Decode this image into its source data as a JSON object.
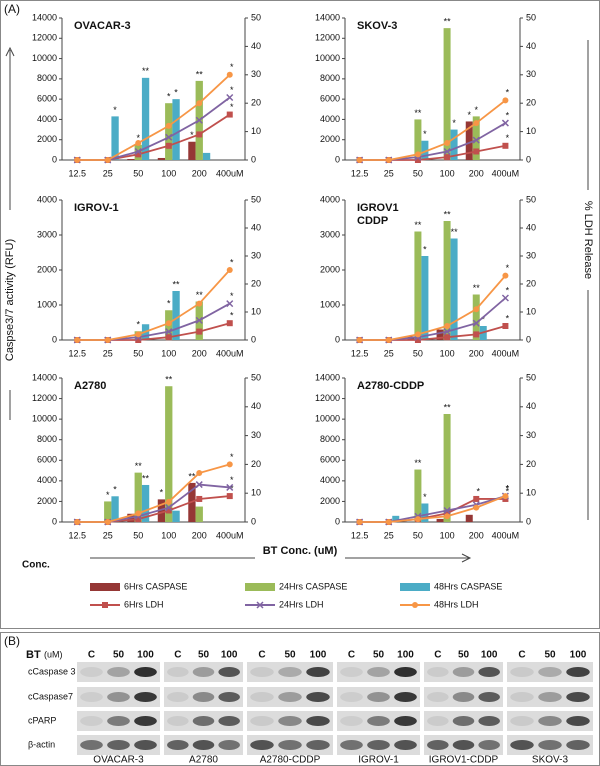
{
  "chart_data": [
    {
      "type": "combo",
      "title": "OVACAR-3",
      "categories": [
        "12.5",
        "25",
        "50",
        "100",
        "200",
        "400uM"
      ],
      "ylim": [
        0,
        14000
      ],
      "yticks": [
        0,
        2000,
        4000,
        6000,
        8000,
        10000,
        12000,
        14000
      ],
      "y2lim": [
        0,
        50
      ],
      "y2ticks": [
        0,
        10,
        20,
        30,
        40,
        50
      ],
      "series": [
        {
          "name": "6Hrs CASPASE",
          "color": "#953735",
          "mark": "bar",
          "values": [
            0,
            50,
            100,
            200,
            1800,
            null
          ],
          "annotations": [
            null,
            null,
            null,
            null,
            "*",
            null
          ]
        },
        {
          "name": "24Hrs CASPASE",
          "color": "#9bbb59",
          "mark": "bar",
          "values": [
            0,
            0,
            1500,
            5600,
            7800,
            null
          ],
          "annotations": [
            null,
            null,
            "*",
            "*",
            "**",
            null
          ]
        },
        {
          "name": "48Hrs CASPASE",
          "color": "#4bacc6",
          "mark": "bar",
          "values": [
            0,
            4300,
            8100,
            6000,
            700,
            null
          ],
          "annotations": [
            null,
            "*",
            "**",
            "*",
            null,
            null
          ]
        },
        {
          "name": "6Hrs LDH",
          "color": "#c0504d",
          "mark": "line",
          "marker": "square",
          "axis": "y2",
          "values": [
            0,
            0,
            2,
            5,
            9,
            16
          ],
          "annotations": [
            null,
            null,
            null,
            null,
            null,
            "*"
          ]
        },
        {
          "name": "24Hrs LDH",
          "color": "#8064a2",
          "mark": "line",
          "marker": "x",
          "axis": "y2",
          "values": [
            0,
            0,
            3,
            8,
            14,
            22
          ],
          "annotations": [
            null,
            null,
            null,
            null,
            null,
            "*"
          ]
        },
        {
          "name": "48Hrs LDH",
          "color": "#f79646",
          "mark": "line",
          "marker": "circle",
          "axis": "y2",
          "values": [
            0,
            0,
            6,
            12,
            20,
            30
          ],
          "annotations": [
            null,
            null,
            null,
            null,
            null,
            "*"
          ]
        }
      ]
    },
    {
      "type": "combo",
      "title": "SKOV-3",
      "categories": [
        "12.5",
        "25",
        "50",
        "100",
        "200",
        "400uM"
      ],
      "ylim": [
        0,
        14000
      ],
      "yticks": [
        0,
        2000,
        4000,
        6000,
        8000,
        10000,
        12000,
        14000
      ],
      "y2lim": [
        0,
        50
      ],
      "y2ticks": [
        0,
        10,
        20,
        30,
        40,
        50
      ],
      "series": [
        {
          "name": "6Hrs CASPASE",
          "color": "#953735",
          "mark": "bar",
          "values": [
            0,
            0,
            0,
            0,
            3800,
            null
          ],
          "annotations": [
            null,
            null,
            null,
            null,
            "*",
            null
          ]
        },
        {
          "name": "24Hrs CASPASE",
          "color": "#9bbb59",
          "mark": "bar",
          "values": [
            0,
            0,
            4000,
            13000,
            4300,
            null
          ],
          "annotations": [
            null,
            null,
            "**",
            "**",
            "*",
            null
          ]
        },
        {
          "name": "48Hrs CASPASE",
          "color": "#4bacc6",
          "mark": "bar",
          "values": [
            0,
            0,
            1900,
            3000,
            0,
            null
          ],
          "annotations": [
            null,
            null,
            "*",
            "*",
            null,
            null
          ]
        },
        {
          "name": "6Hrs LDH",
          "color": "#c0504d",
          "mark": "line",
          "marker": "square",
          "axis": "y2",
          "values": [
            0,
            0,
            0,
            1,
            3,
            5
          ],
          "annotations": [
            null,
            null,
            null,
            null,
            null,
            "*"
          ]
        },
        {
          "name": "24Hrs LDH",
          "color": "#8064a2",
          "mark": "line",
          "marker": "x",
          "axis": "y2",
          "values": [
            0,
            0,
            1,
            3,
            7,
            13
          ],
          "annotations": [
            null,
            null,
            null,
            null,
            null,
            "*"
          ]
        },
        {
          "name": "48Hrs LDH",
          "color": "#f79646",
          "mark": "line",
          "marker": "circle",
          "axis": "y2",
          "values": [
            0,
            0,
            2,
            6,
            13,
            21
          ],
          "annotations": [
            null,
            null,
            null,
            null,
            null,
            "*"
          ]
        }
      ]
    },
    {
      "type": "combo",
      "title": "IGROV-1",
      "categories": [
        "12.5",
        "25",
        "50",
        "100",
        "200",
        "400uM"
      ],
      "ylim": [
        0,
        4000
      ],
      "yticks": [
        0,
        1000,
        2000,
        3000,
        4000
      ],
      "y2lim": [
        0,
        50
      ],
      "y2ticks": [
        0,
        10,
        20,
        30,
        40,
        50
      ],
      "series": [
        {
          "name": "6Hrs CASPASE",
          "color": "#953735",
          "mark": "bar",
          "values": [
            0,
            0,
            0,
            0,
            0,
            null
          ],
          "annotations": [
            null,
            null,
            null,
            null,
            null,
            null
          ]
        },
        {
          "name": "24Hrs CASPASE",
          "color": "#9bbb59",
          "mark": "bar",
          "values": [
            0,
            0,
            250,
            850,
            1100,
            null
          ],
          "annotations": [
            null,
            null,
            "*",
            "*",
            "**",
            null
          ]
        },
        {
          "name": "48Hrs CASPASE",
          "color": "#4bacc6",
          "mark": "bar",
          "values": [
            0,
            0,
            450,
            1400,
            0,
            null
          ],
          "annotations": [
            null,
            null,
            null,
            "**",
            null,
            null
          ]
        },
        {
          "name": "6Hrs LDH",
          "color": "#c0504d",
          "mark": "line",
          "marker": "square",
          "axis": "y2",
          "values": [
            0,
            0,
            0,
            1,
            3,
            6
          ],
          "annotations": [
            null,
            null,
            null,
            null,
            null,
            "*"
          ]
        },
        {
          "name": "24Hrs LDH",
          "color": "#8064a2",
          "mark": "line",
          "marker": "x",
          "axis": "y2",
          "values": [
            0,
            0,
            1,
            3,
            7,
            13
          ],
          "annotations": [
            null,
            null,
            null,
            null,
            null,
            "*"
          ]
        },
        {
          "name": "48Hrs LDH",
          "color": "#f79646",
          "mark": "line",
          "marker": "circle",
          "axis": "y2",
          "values": [
            0,
            0,
            2,
            6,
            13,
            25
          ],
          "annotations": [
            null,
            null,
            null,
            null,
            null,
            "*"
          ]
        }
      ]
    },
    {
      "type": "combo",
      "title": [
        "IGROV1",
        "CDDP"
      ],
      "categories": [
        "12.5",
        "25",
        "50",
        "100",
        "200",
        "400uM"
      ],
      "ylim": [
        0,
        4000
      ],
      "yticks": [
        0,
        1000,
        2000,
        3000,
        4000
      ],
      "y2lim": [
        0,
        50
      ],
      "y2ticks": [
        0,
        10,
        20,
        30,
        40,
        50
      ],
      "series": [
        {
          "name": "6Hrs CASPASE",
          "color": "#953735",
          "mark": "bar",
          "values": [
            0,
            0,
            100,
            300,
            0,
            null
          ],
          "annotations": [
            null,
            null,
            null,
            null,
            null,
            null
          ]
        },
        {
          "name": "24Hrs CASPASE",
          "color": "#9bbb59",
          "mark": "bar",
          "values": [
            0,
            0,
            3100,
            3400,
            1300,
            null
          ],
          "annotations": [
            null,
            null,
            "**",
            "**",
            "**",
            null
          ]
        },
        {
          "name": "48Hrs CASPASE",
          "color": "#4bacc6",
          "mark": "bar",
          "values": [
            0,
            0,
            2400,
            2900,
            400,
            null
          ],
          "annotations": [
            null,
            null,
            "*",
            "**",
            "*",
            null
          ]
        },
        {
          "name": "6Hrs LDH",
          "color": "#c0504d",
          "mark": "line",
          "marker": "square",
          "axis": "y2",
          "values": [
            0,
            0,
            0,
            1,
            2,
            5
          ],
          "annotations": [
            null,
            null,
            null,
            null,
            null,
            "*"
          ]
        },
        {
          "name": "24Hrs LDH",
          "color": "#8064a2",
          "mark": "line",
          "marker": "x",
          "axis": "y2",
          "values": [
            0,
            0,
            1,
            3,
            6,
            15
          ],
          "annotations": [
            null,
            null,
            null,
            null,
            null,
            "*"
          ]
        },
        {
          "name": "48Hrs LDH",
          "color": "#f79646",
          "mark": "line",
          "marker": "circle",
          "axis": "y2",
          "values": [
            0,
            0,
            2,
            5,
            11,
            23
          ],
          "annotations": [
            null,
            null,
            null,
            null,
            null,
            "*"
          ]
        }
      ]
    },
    {
      "type": "combo",
      "title": "A2780",
      "categories": [
        "12.5",
        "25",
        "50",
        "100",
        "200",
        "400uM"
      ],
      "ylim": [
        0,
        14000
      ],
      "yticks": [
        0,
        2000,
        4000,
        6000,
        8000,
        10000,
        12000,
        14000
      ],
      "y2lim": [
        0,
        50
      ],
      "y2ticks": [
        0,
        10,
        20,
        30,
        40,
        50
      ],
      "series": [
        {
          "name": "6Hrs CASPASE",
          "color": "#953735",
          "mark": "bar",
          "values": [
            0,
            0,
            800,
            2200,
            3800,
            null
          ],
          "annotations": [
            null,
            null,
            null,
            "*",
            "**",
            null
          ]
        },
        {
          "name": "24Hrs CASPASE",
          "color": "#9bbb59",
          "mark": "bar",
          "values": [
            0,
            2000,
            4800,
            13200,
            1500,
            null
          ],
          "annotations": [
            null,
            "*",
            "**",
            "**",
            "*",
            null
          ]
        },
        {
          "name": "48Hrs CASPASE",
          "color": "#4bacc6",
          "mark": "bar",
          "values": [
            0,
            2500,
            3600,
            1100,
            0,
            null
          ],
          "annotations": [
            null,
            "*",
            "**",
            null,
            null,
            null
          ]
        },
        {
          "name": "6Hrs LDH",
          "color": "#c0504d",
          "mark": "line",
          "marker": "square",
          "axis": "y2",
          "values": [
            0,
            0,
            1,
            4,
            8,
            9
          ],
          "annotations": [
            null,
            null,
            null,
            null,
            null,
            "*"
          ]
        },
        {
          "name": "24Hrs LDH",
          "color": "#8064a2",
          "mark": "line",
          "marker": "x",
          "axis": "y2",
          "values": [
            0,
            0,
            2,
            5,
            13,
            12
          ],
          "annotations": [
            null,
            null,
            null,
            null,
            null,
            "*"
          ]
        },
        {
          "name": "48Hrs LDH",
          "color": "#f79646",
          "mark": "line",
          "marker": "circle",
          "axis": "y2",
          "values": [
            0,
            0,
            3,
            7,
            17,
            20
          ],
          "annotations": [
            null,
            null,
            null,
            null,
            null,
            "*"
          ]
        }
      ]
    },
    {
      "type": "combo",
      "title": "A2780-CDDP",
      "categories": [
        "12.5",
        "25",
        "50",
        "100",
        "200",
        "400uM"
      ],
      "ylim": [
        0,
        14000
      ],
      "yticks": [
        0,
        2000,
        4000,
        6000,
        8000,
        10000,
        12000,
        14000
      ],
      "y2lim": [
        0,
        50
      ],
      "y2ticks": [
        0,
        10,
        20,
        30,
        40,
        50
      ],
      "series": [
        {
          "name": "6Hrs CASPASE",
          "color": "#953735",
          "mark": "bar",
          "values": [
            0,
            0,
            0,
            300,
            700,
            null
          ],
          "annotations": [
            null,
            null,
            null,
            null,
            null,
            null
          ]
        },
        {
          "name": "24Hrs CASPASE",
          "color": "#9bbb59",
          "mark": "bar",
          "values": [
            0,
            0,
            5100,
            10500,
            0,
            null
          ],
          "annotations": [
            null,
            null,
            "**",
            "**",
            null,
            null
          ]
        },
        {
          "name": "48Hrs CASPASE",
          "color": "#4bacc6",
          "mark": "bar",
          "values": [
            0,
            600,
            1800,
            0,
            0,
            null
          ],
          "annotations": [
            null,
            null,
            "*",
            null,
            null,
            null
          ]
        },
        {
          "name": "6Hrs LDH",
          "color": "#c0504d",
          "mark": "line",
          "marker": "square",
          "axis": "y2",
          "values": [
            0,
            0,
            1,
            3,
            8,
            8
          ],
          "annotations": [
            null,
            null,
            null,
            null,
            "*",
            "*"
          ]
        },
        {
          "name": "24Hrs LDH",
          "color": "#8064a2",
          "mark": "line",
          "marker": "x",
          "axis": "y2",
          "values": [
            0,
            0,
            2,
            4,
            6,
            9
          ],
          "annotations": [
            null,
            null,
            null,
            null,
            null,
            "*"
          ]
        },
        {
          "name": "48Hrs LDH",
          "color": "#f79646",
          "mark": "line",
          "marker": "circle",
          "axis": "y2",
          "values": [
            0,
            0,
            1,
            2,
            5,
            9
          ],
          "annotations": [
            null,
            null,
            null,
            null,
            null,
            "*"
          ]
        }
      ]
    }
  ],
  "figure": {
    "panel_a": "(A)",
    "ylabel": "Caspse3/7 activity (RFU)",
    "y2label": "% LDH Release",
    "xlabel": "BT Conc. (uM)",
    "conc": "Conc."
  },
  "blot": {
    "panel_b": "(B)",
    "dose_label": "BT",
    "dose_unit": "(uM)",
    "doses": [
      "C",
      "50",
      "100"
    ],
    "proteins": [
      "cCaspase 3",
      "cCaspase7",
      "cPARP",
      "β-actin"
    ],
    "cell_lines": [
      "OVACAR-3",
      "A2780",
      "A2780-CDDP",
      "IGROV-1",
      "IGROV1-CDDP",
      "SKOV-3"
    ]
  }
}
